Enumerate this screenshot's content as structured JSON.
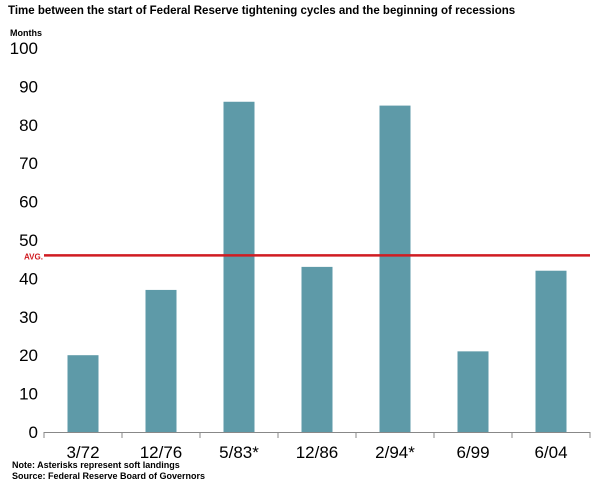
{
  "title": "Time between the start of Federal Reserve tightening cycles and the beginning of recessions",
  "notes": [
    "Note: Asterisks represent soft landings",
    "Source: Federal Reserve Board of Governors"
  ],
  "colors": {
    "bar": "#5e9aa8",
    "avg_line": "#d01c22",
    "axis": "#888888"
  },
  "chart_data": {
    "type": "bar",
    "title": "Time between the start of Federal Reserve tightening cycles and the beginning of recessions",
    "ylabel": "Months",
    "xlabel": "",
    "categories": [
      "3/72",
      "12/76",
      "5/83*",
      "12/86",
      "2/94*",
      "6/99",
      "6/04"
    ],
    "values": [
      20,
      37,
      86,
      43,
      85,
      21,
      42
    ],
    "ylim": [
      0,
      100
    ],
    "yticks": [
      0,
      10,
      20,
      30,
      40,
      50,
      60,
      70,
      80,
      90,
      100
    ],
    "grid": false,
    "average": {
      "label": "AVG.",
      "value": 46
    }
  }
}
